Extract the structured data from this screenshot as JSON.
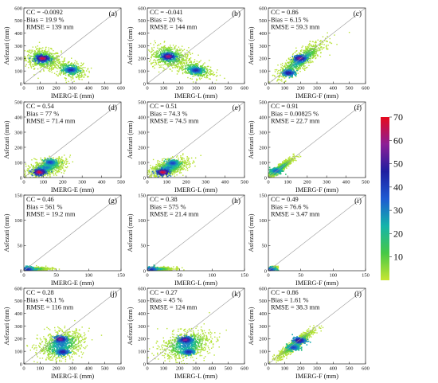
{
  "colorbar": {
    "min": 0,
    "max": 70,
    "ticks": [
      "10",
      "20",
      "30",
      "40",
      "50",
      "60",
      "70"
    ],
    "tick_values": [
      10,
      20,
      30,
      40,
      50,
      60,
      70
    ],
    "colors": [
      "#c8e632",
      "#46c846",
      "#14b4aa",
      "#1e5ad2",
      "#1e1ea0",
      "#8c1e96",
      "#e60a1e"
    ]
  },
  "chart_data": [
    {
      "label": "(a)",
      "type": "scatter",
      "xlabel": "IMERG-E (mm)",
      "ylabel": "Asfezari (mm)",
      "xlim": [
        0,
        600
      ],
      "ylim": [
        0,
        600
      ],
      "xticks": [
        "0",
        "100",
        "200",
        "300",
        "400",
        "500",
        "600"
      ],
      "yticks": [
        "0",
        "100",
        "200",
        "300",
        "400",
        "500",
        "600"
      ],
      "stats": [
        "CC = -0.0092",
        "Bias = 19.9 %",
        "RMSE = 139 mm"
      ],
      "clusters": [
        {
          "x": 120,
          "y": 195,
          "sx": 55,
          "sy": 40,
          "n": 650,
          "r": -0.2
        },
        {
          "x": 285,
          "y": 110,
          "sx": 50,
          "sy": 35,
          "n": 380,
          "r": -0.3
        }
      ],
      "hotspots": [
        {
          "x": 115,
          "y": 200,
          "d": 70
        },
        {
          "x": 290,
          "y": 108,
          "d": 45
        }
      ]
    },
    {
      "label": "(b)",
      "type": "scatter",
      "xlabel": "IMERG-L (mm)",
      "ylabel": "Asfezari (mm)",
      "xlim": [
        0,
        600
      ],
      "ylim": [
        0,
        600
      ],
      "xticks": [
        "0",
        "100",
        "200",
        "300",
        "400",
        "500",
        "600"
      ],
      "yticks": [
        "0",
        "100",
        "200",
        "300",
        "400",
        "500",
        "600"
      ],
      "stats": [
        "CC = -0.041",
        "Bias = 20 %",
        "RMSE = 144 mm"
      ],
      "clusters": [
        {
          "x": 135,
          "y": 215,
          "sx": 60,
          "sy": 45,
          "n": 650,
          "r": -0.2
        },
        {
          "x": 295,
          "y": 110,
          "sx": 55,
          "sy": 35,
          "n": 380,
          "r": -0.3
        }
      ],
      "hotspots": [
        {
          "x": 130,
          "y": 215,
          "d": 65
        },
        {
          "x": 300,
          "y": 105,
          "d": 45
        }
      ]
    },
    {
      "label": "(c)",
      "type": "scatter",
      "xlabel": "IMERG-F (mm)",
      "ylabel": "Asfezari (mm)",
      "xlim": [
        0,
        600
      ],
      "ylim": [
        0,
        600
      ],
      "xticks": [
        "0",
        "100",
        "200",
        "300",
        "400",
        "500",
        "600"
      ],
      "yticks": [
        "0",
        "100",
        "200",
        "300",
        "400",
        "500",
        "600"
      ],
      "stats": [
        "CC = 0.86",
        "Bias = 6.15 %",
        "RMSE = 59.3 mm"
      ],
      "clusters": [
        {
          "x": 200,
          "y": 185,
          "sx": 70,
          "sy": 70,
          "n": 900,
          "r": 0.85
        }
      ],
      "hotspots": [
        {
          "x": 195,
          "y": 200,
          "d": 60
        },
        {
          "x": 125,
          "y": 85,
          "d": 50
        }
      ]
    },
    {
      "label": "(d)",
      "type": "scatter",
      "xlabel": "IMERG-E (mm)",
      "ylabel": "Asfezari (mm)",
      "xlim": [
        0,
        500
      ],
      "ylim": [
        0,
        500
      ],
      "xticks": [
        "0",
        "100",
        "200",
        "300",
        "400",
        "500"
      ],
      "yticks": [
        "0",
        "100",
        "200",
        "300",
        "400",
        "500"
      ],
      "stats": [
        "CC = 0.54",
        "Bias = 77 %",
        "RMSE = 71.4 mm"
      ],
      "clusters": [
        {
          "x": 115,
          "y": 65,
          "sx": 50,
          "sy": 30,
          "n": 800,
          "r": 0.5
        }
      ],
      "hotspots": [
        {
          "x": 80,
          "y": 35,
          "d": 70
        },
        {
          "x": 135,
          "y": 100,
          "d": 40
        }
      ]
    },
    {
      "label": "(e)",
      "type": "scatter",
      "xlabel": "IMERG-L (mm)",
      "ylabel": "Asfezari (mm)",
      "xlim": [
        0,
        500
      ],
      "ylim": [
        0,
        500
      ],
      "xticks": [
        "0",
        "100",
        "200",
        "300",
        "400",
        "500"
      ],
      "yticks": [
        "0",
        "100",
        "200",
        "300",
        "400",
        "500"
      ],
      "stats": [
        "CC = 0.51",
        "Bias = 74.3 %",
        "RMSE = 74.5 mm"
      ],
      "clusters": [
        {
          "x": 110,
          "y": 65,
          "sx": 50,
          "sy": 30,
          "n": 800,
          "r": 0.5
        }
      ],
      "hotspots": [
        {
          "x": 80,
          "y": 35,
          "d": 70
        },
        {
          "x": 130,
          "y": 95,
          "d": 40
        }
      ]
    },
    {
      "label": "(f)",
      "type": "scatter",
      "xlabel": "IMERG-F (mm)",
      "ylabel": "Asfezari (mm)",
      "xlim": [
        0,
        500
      ],
      "ylim": [
        0,
        500
      ],
      "xticks": [
        "0",
        "100",
        "200",
        "300",
        "400",
        "500"
      ],
      "yticks": [
        "0",
        "100",
        "200",
        "300",
        "400",
        "500"
      ],
      "stats": [
        "CC = 0.91",
        "Bias = 0.00825 %",
        "RMSE = 22.7 mm"
      ],
      "clusters": [
        {
          "x": 60,
          "y": 60,
          "sx": 35,
          "sy": 35,
          "n": 700,
          "r": 0.92
        }
      ],
      "hotspots": [
        {
          "x": 40,
          "y": 45,
          "d": 35
        }
      ]
    },
    {
      "label": "(g)",
      "type": "scatter",
      "xlabel": "IMERG-E (mm)",
      "ylabel": "Asfezari (mm)",
      "xlim": [
        0,
        150
      ],
      "ylim": [
        0,
        150
      ],
      "xticks": [
        "0",
        "50",
        "100",
        "150"
      ],
      "yticks": [
        "0",
        "50",
        "100",
        "150"
      ],
      "stats": [
        "CC = 0.46",
        "Bias = 561 %",
        "RMSE = 19.2 mm"
      ],
      "clusters": [
        {
          "x": 15,
          "y": 3,
          "sx": 12,
          "sy": 2,
          "n": 600,
          "r": 0.3
        }
      ],
      "hotspots": [
        {
          "x": 6,
          "y": 2,
          "d": 45
        }
      ]
    },
    {
      "label": "(h)",
      "type": "scatter",
      "xlabel": "IMERG-L (mm)",
      "ylabel": "Asfezari (mm)",
      "xlim": [
        0,
        150
      ],
      "ylim": [
        0,
        150
      ],
      "xticks": [
        "0",
        "50",
        "100",
        "150"
      ],
      "yticks": [
        "0",
        "50",
        "100",
        "150"
      ],
      "stats": [
        "CC = 0.38",
        "Bias = 575 %",
        "RMSE = 21.4 mm"
      ],
      "clusters": [
        {
          "x": 15,
          "y": 3,
          "sx": 13,
          "sy": 2,
          "n": 600,
          "r": 0.3
        }
      ],
      "hotspots": [
        {
          "x": 6,
          "y": 2,
          "d": 45
        }
      ]
    },
    {
      "label": "(i)",
      "type": "scatter",
      "xlabel": "IMERG-F (mm)",
      "ylabel": "Asfezari (mm)",
      "xlim": [
        0,
        150
      ],
      "ylim": [
        0,
        150
      ],
      "xticks": [
        "0",
        "50",
        "100",
        "150"
      ],
      "yticks": [
        "0",
        "50",
        "100",
        "150"
      ],
      "stats": [
        "CC = 0.49",
        "Bias = 76.6 %",
        "RMSE = 3.47 mm"
      ],
      "clusters": [
        {
          "x": 5,
          "y": 3,
          "sx": 4,
          "sy": 2.5,
          "n": 500,
          "r": 0.5
        }
      ],
      "hotspots": [
        {
          "x": 3,
          "y": 2,
          "d": 40
        }
      ]
    },
    {
      "label": "(j)",
      "type": "scatter",
      "xlabel": "IMERG-E (mm)",
      "ylabel": "Asfezari (mm)",
      "xlim": [
        0,
        600
      ],
      "ylim": [
        0,
        600
      ],
      "xticks": [
        "0",
        "100",
        "200",
        "300",
        "400",
        "500",
        "600"
      ],
      "yticks": [
        "0",
        "100",
        "200",
        "300",
        "400",
        "500",
        "600"
      ],
      "stats": [
        "CC = 0.28",
        "Bias = 43.1 %",
        "RMSE = 116 mm"
      ],
      "clusters": [
        {
          "x": 230,
          "y": 150,
          "sx": 70,
          "sy": 55,
          "n": 900,
          "r": 0.3
        }
      ],
      "hotspots": [
        {
          "x": 225,
          "y": 195,
          "d": 60
        },
        {
          "x": 240,
          "y": 95,
          "d": 50
        }
      ]
    },
    {
      "label": "(k)",
      "type": "scatter",
      "xlabel": "IMERG-L (mm)",
      "ylabel": "Asfezari (mm)",
      "xlim": [
        0,
        600
      ],
      "ylim": [
        0,
        600
      ],
      "xticks": [
        "0",
        "100",
        "200",
        "300",
        "400",
        "500",
        "600"
      ],
      "yticks": [
        "0",
        "100",
        "200",
        "300",
        "400",
        "500",
        "600"
      ],
      "stats": [
        "CC = 0.27",
        "Bias = 45 %",
        "RMSE = 124 mm"
      ],
      "clusters": [
        {
          "x": 240,
          "y": 150,
          "sx": 75,
          "sy": 55,
          "n": 900,
          "r": 0.3
        }
      ],
      "hotspots": [
        {
          "x": 235,
          "y": 190,
          "d": 60
        },
        {
          "x": 255,
          "y": 95,
          "d": 45
        }
      ]
    },
    {
      "label": "(l)",
      "type": "scatter",
      "xlabel": "IMERG-F (mm)",
      "ylabel": "Asfezari (mm)",
      "xlim": [
        0,
        600
      ],
      "ylim": [
        0,
        600
      ],
      "xticks": [
        "0",
        "100",
        "200",
        "300",
        "400",
        "500",
        "600"
      ],
      "yticks": [
        "0",
        "100",
        "200",
        "300",
        "400",
        "500",
        "600"
      ],
      "stats": [
        "CC = 0.86",
        "Bias = 1.61 %",
        "RMSE = 38.3 mm"
      ],
      "clusters": [
        {
          "x": 170,
          "y": 160,
          "sx": 55,
          "sy": 55,
          "n": 900,
          "r": 0.93
        }
      ],
      "hotspots": [
        {
          "x": 190,
          "y": 185,
          "d": 55
        },
        {
          "x": 155,
          "y": 130,
          "d": 40
        }
      ]
    }
  ]
}
